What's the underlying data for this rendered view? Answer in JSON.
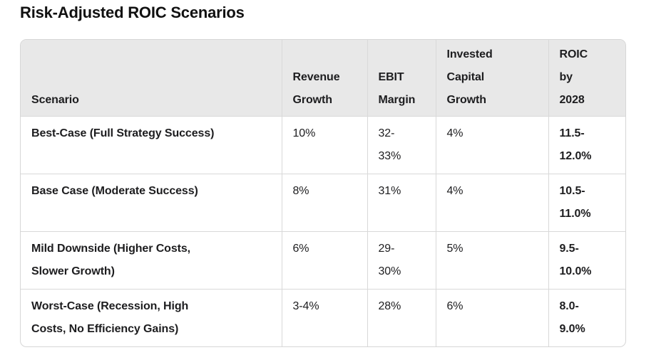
{
  "title": "Risk-Adjusted ROIC Scenarios",
  "colors": {
    "page_bg": "#ffffff",
    "header_bg": "#e8e8e8",
    "border": "#d9d9d9",
    "text": "#1d1d1f"
  },
  "table_display": {
    "headers": [
      "Scenario",
      "Revenue\nGrowth",
      "EBIT\nMargin",
      "Invested\nCapital\nGrowth",
      "ROIC\nby\n2028"
    ],
    "rows": [
      [
        "Best-Case (Full Strategy Success)",
        "10%",
        "32-\n33%",
        "4%",
        "11.5-\n12.0%"
      ],
      [
        "Base Case (Moderate Success)",
        "8%",
        "31%",
        "4%",
        "10.5-\n11.0%"
      ],
      [
        "Mild Downside (Higher Costs,\nSlower Growth)",
        "6%",
        "29-\n30%",
        "5%",
        "9.5-\n10.0%"
      ],
      [
        "Worst-Case (Recession, High\nCosts, No Efficiency Gains)",
        "3-4%",
        "28%",
        "6%",
        "8.0-\n9.0%"
      ]
    ]
  },
  "chart_data": {
    "type": "table",
    "title": "Risk-Adjusted ROIC Scenarios",
    "columns": [
      "Scenario",
      "Revenue Growth",
      "EBIT Margin",
      "Invested Capital Growth",
      "ROIC by 2028"
    ],
    "rows": [
      [
        "Best-Case (Full Strategy Success)",
        "10%",
        "32-33%",
        "4%",
        "11.5-12.0%"
      ],
      [
        "Base Case (Moderate Success)",
        "8%",
        "31%",
        "4%",
        "10.5-11.0%"
      ],
      [
        "Mild Downside (Higher Costs, Slower Growth)",
        "6%",
        "29-30%",
        "5%",
        "9.5-10.0%"
      ],
      [
        "Worst-Case (Recession, High Costs, No Efficiency Gains)",
        "3-4%",
        "28%",
        "6%",
        "8.0-9.0%"
      ]
    ]
  }
}
